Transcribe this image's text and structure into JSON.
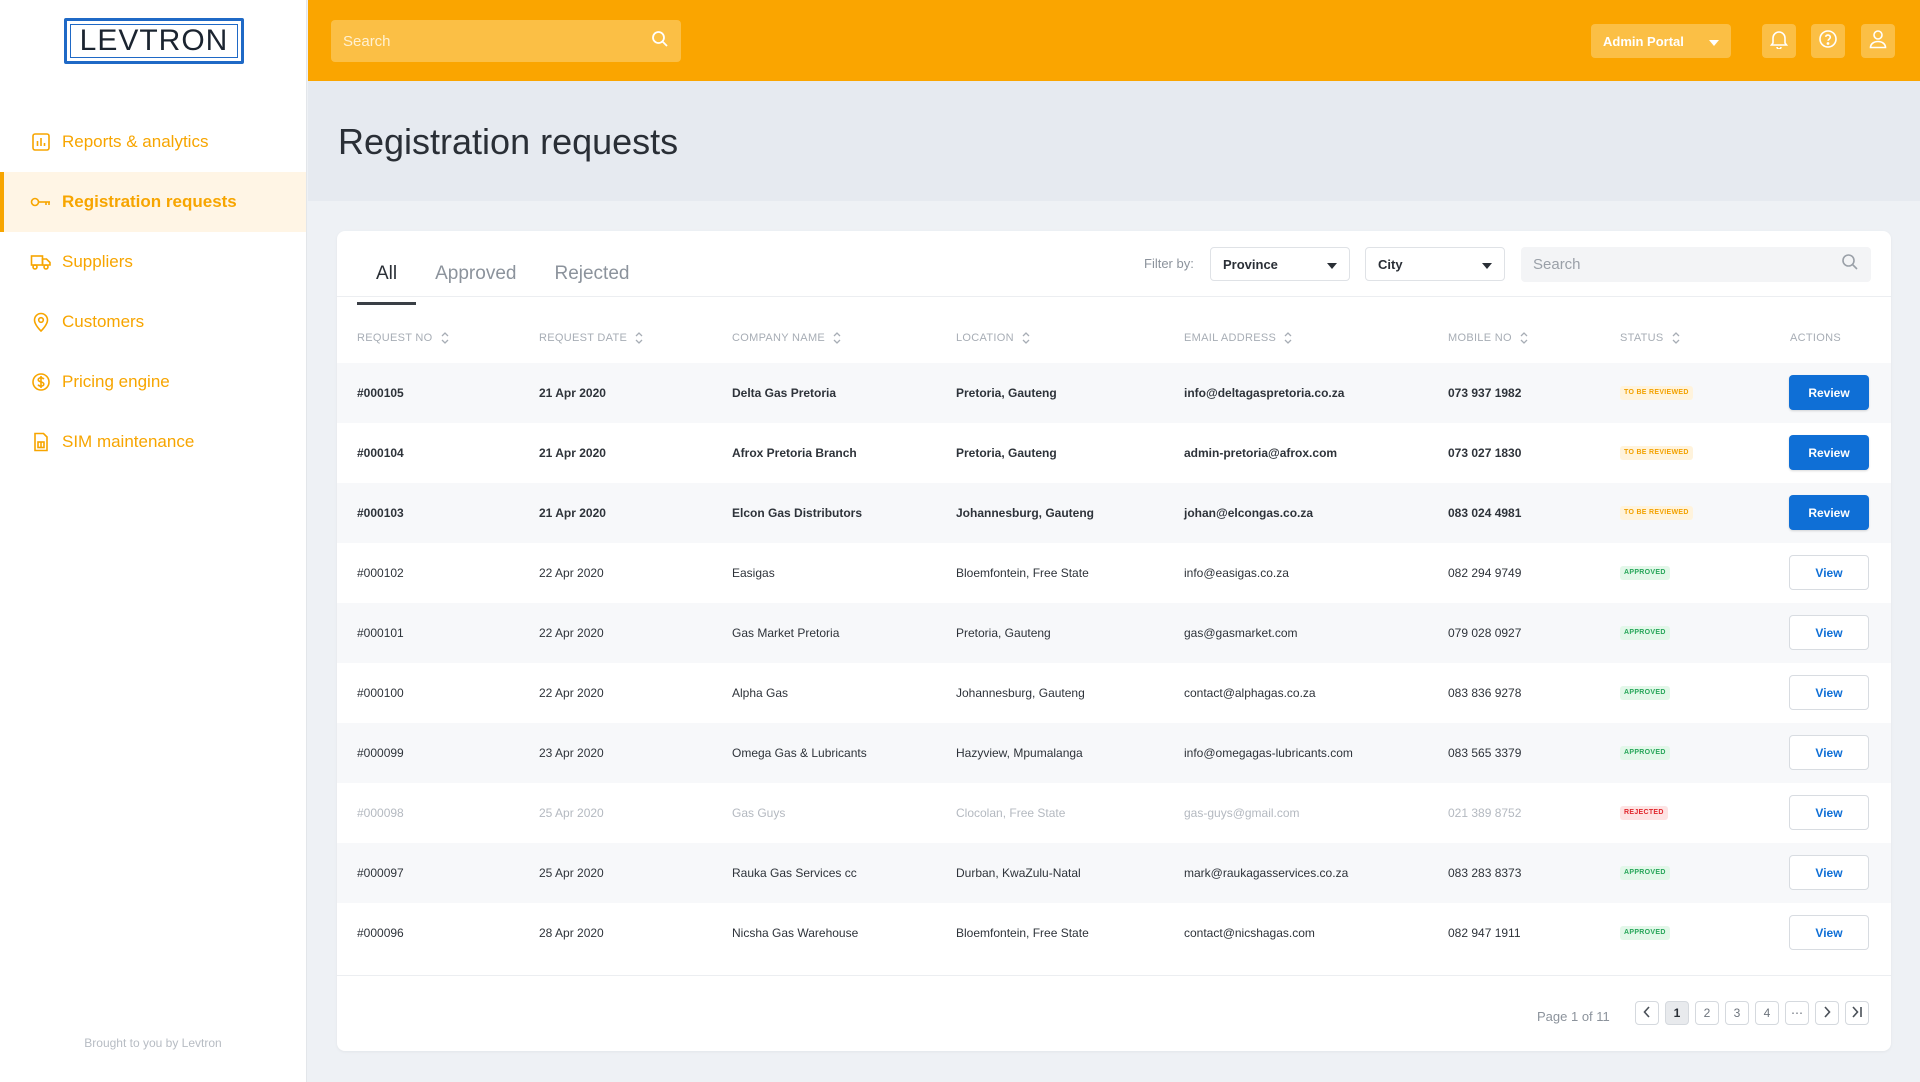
{
  "brand": {
    "logo_text": "LEVTRON"
  },
  "sidebar": {
    "items": [
      {
        "label": "Reports & analytics",
        "icon": "bar-chart-icon",
        "active": false
      },
      {
        "label": "Registration requests",
        "icon": "key-icon",
        "active": true
      },
      {
        "label": "Suppliers",
        "icon": "truck-icon",
        "active": false
      },
      {
        "label": "Customers",
        "icon": "location-pin-icon",
        "active": false
      },
      {
        "label": "Pricing engine",
        "icon": "dollar-coin-icon",
        "active": false
      },
      {
        "label": "SIM maintenance",
        "icon": "sim-card-icon",
        "active": false
      }
    ],
    "footer": "Brought to you by Levtron"
  },
  "topbar": {
    "search_placeholder": "Search",
    "portal_label": "Admin Portal"
  },
  "page": {
    "title": "Registration requests"
  },
  "tabs": [
    {
      "label": "All",
      "active": true
    },
    {
      "label": "Approved",
      "active": false
    },
    {
      "label": "Rejected",
      "active": false
    }
  ],
  "filters": {
    "label": "Filter by:",
    "province": "Province",
    "city": "City",
    "search_placeholder": "Search"
  },
  "table": {
    "columns": [
      "REQUEST NO",
      "REQUEST DATE",
      "COMPANY NAME",
      "LOCATION",
      "EMAIL ADDRESS",
      "MOBILE NO",
      "STATUS",
      "ACTIONS"
    ],
    "rows": [
      {
        "id": "#000105",
        "date": "21 Apr 2020",
        "company": "Delta Gas Pretoria",
        "location": "Pretoria, Gauteng",
        "email": "info@deltagaspretoria.co.za",
        "mobile": "073 937 1982",
        "status": "TO BE REVIEWED",
        "status_type": "review",
        "action": "Review"
      },
      {
        "id": "#000104",
        "date": "21 Apr 2020",
        "company": "Afrox Pretoria Branch",
        "location": "Pretoria, Gauteng",
        "email": "admin-pretoria@afrox.com",
        "mobile": "073 027 1830",
        "status": "TO BE REVIEWED",
        "status_type": "review",
        "action": "Review"
      },
      {
        "id": "#000103",
        "date": "21 Apr 2020",
        "company": "Elcon Gas Distributors",
        "location": "Johannesburg, Gauteng",
        "email": "johan@elcongas.co.za",
        "mobile": "083 024 4981",
        "status": "TO BE REVIEWED",
        "status_type": "review",
        "action": "Review"
      },
      {
        "id": "#000102",
        "date": "22 Apr 2020",
        "company": "Easigas",
        "location": "Bloemfontein, Free State",
        "email": "info@easigas.co.za",
        "mobile": "082 294 9749",
        "status": "APPROVED",
        "status_type": "approved",
        "action": "View"
      },
      {
        "id": "#000101",
        "date": "22 Apr 2020",
        "company": "Gas Market Pretoria",
        "location": "Pretoria, Gauteng",
        "email": "gas@gasmarket.com",
        "mobile": "079 028 0927",
        "status": "APPROVED",
        "status_type": "approved",
        "action": "View"
      },
      {
        "id": "#000100",
        "date": "22 Apr 2020",
        "company": "Alpha Gas",
        "location": "Johannesburg, Gauteng",
        "email": "contact@alphagas.co.za",
        "mobile": "083 836 9278",
        "status": "APPROVED",
        "status_type": "approved",
        "action": "View"
      },
      {
        "id": "#000099",
        "date": "23 Apr 2020",
        "company": "Omega Gas & Lubricants",
        "location": "Hazyview, Mpumalanga",
        "email": "info@omegagas-lubricants.com",
        "mobile": "083 565 3379",
        "status": "APPROVED",
        "status_type": "approved",
        "action": "View"
      },
      {
        "id": "#000098",
        "date": "25 Apr 2020",
        "company": "Gas Guys",
        "location": "Clocolan, Free State",
        "email": "gas-guys@gmail.com",
        "mobile": "021 389 8752",
        "status": "REJECTED",
        "status_type": "rejected",
        "action": "View"
      },
      {
        "id": "#000097",
        "date": "25 Apr 2020",
        "company": "Rauka Gas Services cc",
        "location": "Durban, KwaZulu-Natal",
        "email": "mark@raukagasservices.co.za",
        "mobile": "083 283 8373",
        "status": "APPROVED",
        "status_type": "approved",
        "action": "View"
      },
      {
        "id": "#000096",
        "date": "28 Apr 2020",
        "company": "Nicsha Gas Warehouse",
        "location": "Bloemfontein, Free State",
        "email": "contact@nicshagas.com",
        "mobile": "082 947 1911",
        "status": "APPROVED",
        "status_type": "approved",
        "action": "View"
      }
    ]
  },
  "pagination": {
    "info": "Page 1 of 11",
    "pages": [
      "1",
      "2",
      "3",
      "4"
    ],
    "ellipsis": "⋯",
    "current": "1"
  },
  "colors": {
    "brand_orange": "#faa500",
    "primary_blue": "#0f6fd6",
    "logo_blue": "#1f69c6"
  }
}
